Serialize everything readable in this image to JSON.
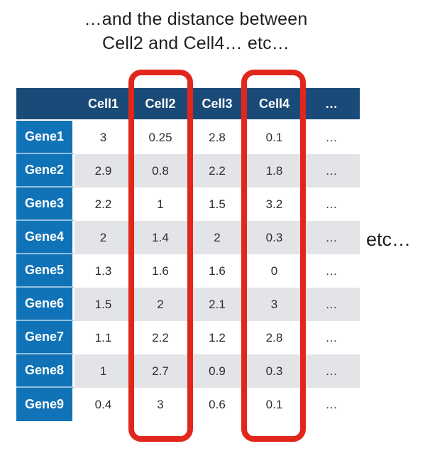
{
  "title": {
    "line1": "…and the distance between",
    "line2": "Cell2 and Cell4… etc…"
  },
  "annotations": {
    "side_note": "etc…"
  },
  "table": {
    "corner_label": "",
    "columns": [
      "Cell1",
      "Cell2",
      "Cell3",
      "Cell4",
      "…"
    ],
    "rows": [
      {
        "label": "Gene1",
        "values": [
          "3",
          "0.25",
          "2.8",
          "0.1",
          "…"
        ]
      },
      {
        "label": "Gene2",
        "values": [
          "2.9",
          "0.8",
          "2.2",
          "1.8",
          "…"
        ]
      },
      {
        "label": "Gene3",
        "values": [
          "2.2",
          "1",
          "1.5",
          "3.2",
          "…"
        ]
      },
      {
        "label": "Gene4",
        "values": [
          "2",
          "1.4",
          "2",
          "0.3",
          "…"
        ]
      },
      {
        "label": "Gene5",
        "values": [
          "1.3",
          "1.6",
          "1.6",
          "0",
          "…"
        ]
      },
      {
        "label": "Gene6",
        "values": [
          "1.5",
          "2",
          "2.1",
          "3",
          "…"
        ]
      },
      {
        "label": "Gene7",
        "values": [
          "1.1",
          "2.2",
          "1.2",
          "2.8",
          "…"
        ]
      },
      {
        "label": "Gene8",
        "values": [
          "1",
          "2.7",
          "0.9",
          "0.3",
          "…"
        ]
      },
      {
        "label": "Gene9",
        "values": [
          "0.4",
          "3",
          "0.6",
          "0.1",
          "…"
        ]
      }
    ],
    "highlighted_columns": [
      "Cell2",
      "Cell4"
    ]
  },
  "colors": {
    "header_background": "#1a4a78",
    "row_label_background": "#1173b7",
    "stripe_background": "#e2e4e7",
    "highlight_red": "#e3261c",
    "text_dark": "#2d2d2d",
    "text_light": "#ffffff"
  },
  "chart_data": {
    "type": "table",
    "title": "…and the distance between Cell2 and Cell4… etc…",
    "columns": [
      "",
      "Cell1",
      "Cell2",
      "Cell3",
      "Cell4",
      "…"
    ],
    "rows": [
      [
        "Gene1",
        3,
        0.25,
        2.8,
        0.1,
        "…"
      ],
      [
        "Gene2",
        2.9,
        0.8,
        2.2,
        1.8,
        "…"
      ],
      [
        "Gene3",
        2.2,
        1,
        1.5,
        3.2,
        "…"
      ],
      [
        "Gene4",
        2,
        1.4,
        2,
        0.3,
        "…"
      ],
      [
        "Gene5",
        1.3,
        1.6,
        1.6,
        0,
        "…"
      ],
      [
        "Gene6",
        1.5,
        2,
        2.1,
        3,
        "…"
      ],
      [
        "Gene7",
        1.1,
        2.2,
        1.2,
        2.8,
        "…"
      ],
      [
        "Gene8",
        1,
        2.7,
        0.9,
        0.3,
        "…"
      ],
      [
        "Gene9",
        0.4,
        3,
        0.6,
        0.1,
        "…"
      ]
    ],
    "highlighted_columns": [
      "Cell2",
      "Cell4"
    ],
    "annotations": [
      "etc…"
    ],
    "legend": "off",
    "grid": "off"
  }
}
